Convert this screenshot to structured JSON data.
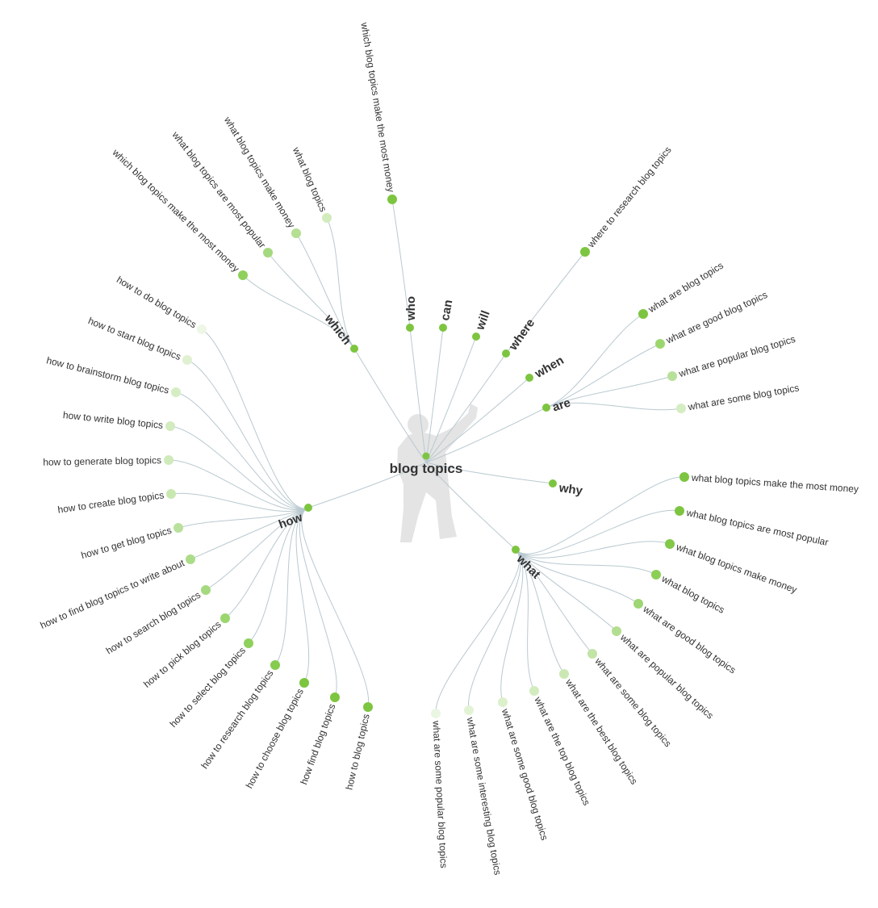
{
  "center": {
    "label": "blog topics",
    "color": "#7dc540",
    "figure_icon": "person-silhouette-icon"
  },
  "line_color": "#b9c9d0",
  "branches": [
    {
      "label": "which",
      "color": "#7dc540",
      "leaves": [
        {
          "text": "which blog topics make the most money",
          "color": "#8fd05c"
        },
        {
          "text": "what blog topics are most popular",
          "color": "#a5d97f"
        },
        {
          "text": "what blog topics make money",
          "color": "#b5df93"
        },
        {
          "text": "what blog topics",
          "color": "#d2ecbd"
        }
      ]
    },
    {
      "label": "who",
      "color": "#7dc540",
      "leaves": [
        {
          "text": "which blog topics make the most money",
          "color": "#7dc540"
        }
      ]
    },
    {
      "label": "can",
      "color": "#7dc540",
      "leaves": []
    },
    {
      "label": "will",
      "color": "#7dc540",
      "leaves": []
    },
    {
      "label": "where",
      "color": "#7dc540",
      "leaves": [
        {
          "text": "where to research blog topics",
          "color": "#7dc540"
        }
      ]
    },
    {
      "label": "when",
      "color": "#7dc540",
      "leaves": []
    },
    {
      "label": "are",
      "color": "#7dc540",
      "leaves": [
        {
          "text": "what are blog topics",
          "color": "#7dc540"
        },
        {
          "text": "what are good blog topics",
          "color": "#9bd66c"
        },
        {
          "text": "what are popular blog topics",
          "color": "#b8e09a"
        },
        {
          "text": "what are some blog topics",
          "color": "#d5edc2"
        }
      ]
    },
    {
      "label": "why",
      "color": "#7dc540",
      "leaves": []
    },
    {
      "label": "what",
      "color": "#7dc540",
      "leaves": [
        {
          "text": "what blog topics make the most money",
          "color": "#7dc540"
        },
        {
          "text": "what blog topics are most popular",
          "color": "#7dc540"
        },
        {
          "text": "what blog topics make money",
          "color": "#82c849"
        },
        {
          "text": "what blog topics",
          "color": "#8ccf55"
        },
        {
          "text": "what are good blog topics",
          "color": "#9dd672"
        },
        {
          "text": "what are popular blog topics",
          "color": "#b3dd8f"
        },
        {
          "text": "what are some blog topics",
          "color": "#c2e4a7"
        },
        {
          "text": "what are the best blog topics",
          "color": "#cbe8b3"
        },
        {
          "text": "what are the top blog topics",
          "color": "#d3ecbf"
        },
        {
          "text": "what are some good blog topics",
          "color": "#dcf0cc"
        },
        {
          "text": "what are some interesting blog topics",
          "color": "#e2f3d5"
        },
        {
          "text": "what are some popular blog topics",
          "color": "#ebf6e2"
        }
      ]
    },
    {
      "label": "how",
      "color": "#7dc540",
      "leaves": [
        {
          "text": "how to do blog topics",
          "color": "#eef7e6"
        },
        {
          "text": "how to start blog topics",
          "color": "#e0f1d1"
        },
        {
          "text": "how to brainstorm blog topics",
          "color": "#d6edc4"
        },
        {
          "text": "how to write blog topics",
          "color": "#d2ebbf"
        },
        {
          "text": "how to generate blog topics",
          "color": "#cfeabb"
        },
        {
          "text": "how to create blog topics",
          "color": "#c8e8b0"
        },
        {
          "text": "how to get blog topics",
          "color": "#b9e19c"
        },
        {
          "text": "how to find blog topics to write about",
          "color": "#acdc89"
        },
        {
          "text": "how to search blog topics",
          "color": "#a5d97f"
        },
        {
          "text": "how to pick blog topics",
          "color": "#9bd66f"
        },
        {
          "text": "how to select blog topics",
          "color": "#8fd05c"
        },
        {
          "text": "how to research blog topics",
          "color": "#86cc4f"
        },
        {
          "text": "how to choose blog topics",
          "color": "#7dc540"
        },
        {
          "text": "how find blog topics",
          "color": "#7dc540"
        },
        {
          "text": "how to blog topics",
          "color": "#7dc540"
        }
      ]
    }
  ]
}
